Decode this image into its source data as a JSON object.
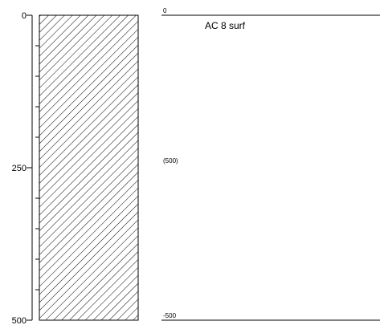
{
  "depth_axis": {
    "ticks": [
      {
        "value": 0,
        "label": "0"
      },
      {
        "value": 250,
        "label": "250"
      },
      {
        "value": 500,
        "label": "500"
      }
    ],
    "minor_ticks": [
      50,
      100,
      150,
      200,
      300,
      350,
      400,
      450
    ],
    "range": [
      0,
      500
    ]
  },
  "column": {
    "fill_pattern": "diagonal-hatch",
    "top": 0,
    "bottom": 500
  },
  "layers": [
    {
      "top_label": "0",
      "bottom_label": "-500",
      "thickness_label": "(500)",
      "description": "AC 8 surf"
    }
  ],
  "colors": {
    "line": "#000000",
    "background": "#ffffff"
  }
}
